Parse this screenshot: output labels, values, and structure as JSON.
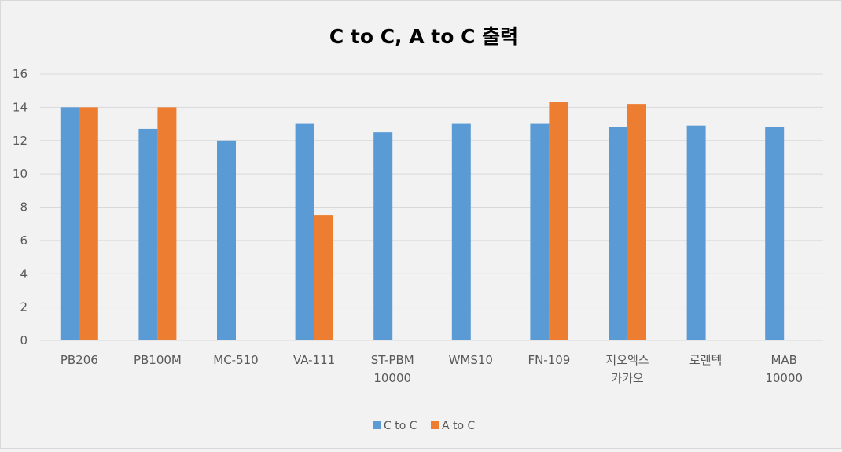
{
  "chart_data": {
    "type": "bar",
    "title": "C to C, A to C  출력",
    "xlabel": "",
    "ylabel": "",
    "ylim": [
      0,
      16
    ],
    "yticks": [
      0,
      2,
      4,
      6,
      8,
      10,
      12,
      14,
      16
    ],
    "grid": true,
    "legend_position": "bottom",
    "categories": [
      [
        "PB206"
      ],
      [
        "PB100M"
      ],
      [
        "MC-510"
      ],
      [
        "VA-111"
      ],
      [
        "ST-PBM",
        "10000"
      ],
      [
        "WMS10"
      ],
      [
        "FN-109"
      ],
      [
        "지오엑스",
        "카카오"
      ],
      [
        "로랜텍"
      ],
      [
        "MAB",
        "10000"
      ]
    ],
    "series": [
      {
        "name": "C to C",
        "color": "#5b9bd5",
        "values": [
          14,
          12.7,
          12,
          13,
          12.5,
          13,
          13,
          12.8,
          12.9,
          12.8
        ]
      },
      {
        "name": "A to C",
        "color": "#ed7d31",
        "values": [
          14,
          14,
          null,
          7.5,
          null,
          null,
          14.3,
          14.2,
          null,
          null
        ]
      }
    ]
  }
}
